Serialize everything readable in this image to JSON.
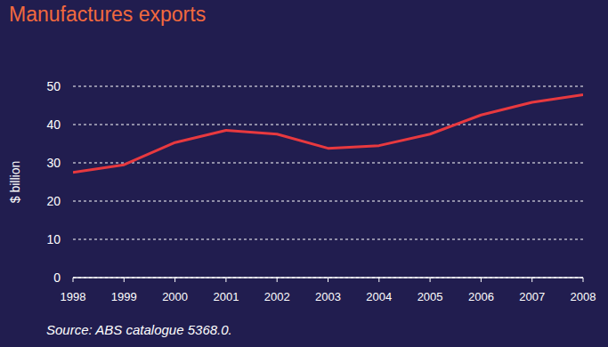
{
  "chart_data": {
    "type": "line",
    "title": "Manufactures exports",
    "y_label": "$ billion",
    "source": "Source: ABS catalogue 5368.0.",
    "categories": [
      "1998",
      "1999",
      "2000",
      "2001",
      "2002",
      "2003",
      "2004",
      "2005",
      "2006",
      "2007",
      "2008"
    ],
    "values": [
      27.5,
      29.5,
      35.3,
      38.5,
      37.5,
      33.8,
      34.5,
      37.5,
      42.5,
      45.8,
      47.8
    ],
    "color": "#e8393f",
    "ylim": [
      0,
      50
    ],
    "yticks": [
      0,
      10,
      20,
      30,
      40,
      50
    ],
    "grid": true
  }
}
